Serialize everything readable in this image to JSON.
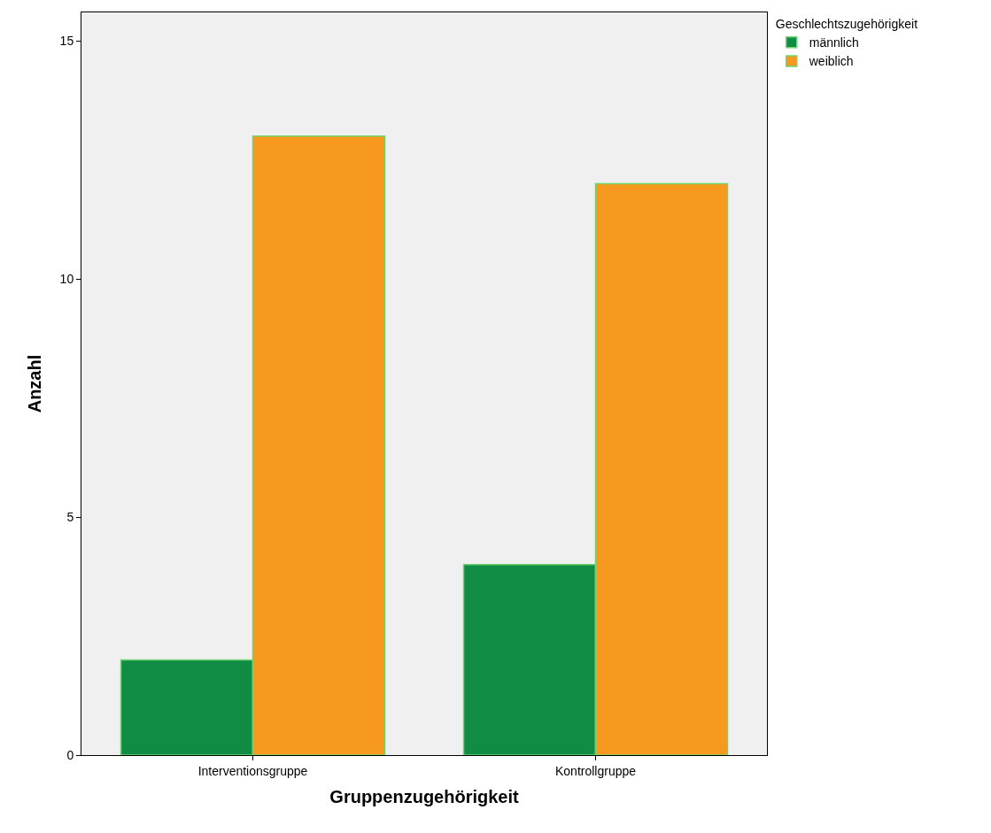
{
  "chart_data": {
    "type": "bar",
    "xlabel": "Gruppenzugehörigkeit",
    "ylabel": "Anzahl",
    "legend_title": "Geschlechtszugehörigkeit",
    "categories": [
      "Interventionsgruppe",
      "Kontrollgruppe"
    ],
    "series": [
      {
        "name": "männlich",
        "color": "#118c45",
        "values": [
          2,
          4
        ]
      },
      {
        "name": "weiblich",
        "color": "#f7981f",
        "values": [
          13,
          12
        ]
      }
    ],
    "ylim": [
      0,
      15.6
    ],
    "yticks": [
      0,
      5,
      10,
      15
    ],
    "grid": false,
    "legend": "top right"
  }
}
